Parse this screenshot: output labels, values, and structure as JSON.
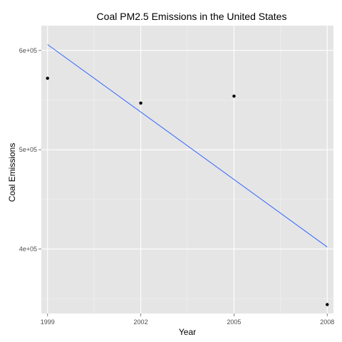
{
  "colors": {
    "panel": "#e5e5e5",
    "grid_major": "#ffffff",
    "grid_minor": "#f2f2f2",
    "fit_line": "#3366ff",
    "points": "#000000",
    "tick_text": "#4d4d4d"
  },
  "chart_data": {
    "type": "scatter",
    "title": "Coal PM2.5 Emissions in the United States",
    "xlabel": "Year",
    "ylabel": "Coal Emissions",
    "xlim": [
      1998.8,
      2008.2
    ],
    "ylim": [
      335000,
      625000
    ],
    "grid": true,
    "x_ticks": [
      1999,
      2002,
      2005,
      2008
    ],
    "x_tick_labels": [
      "1999",
      "2002",
      "2005",
      "2008"
    ],
    "y_ticks": [
      400000,
      500000,
      600000
    ],
    "y_tick_labels": [
      "4e+05",
      "5e+05",
      "6e+05"
    ],
    "series": [
      {
        "type": "scatter",
        "x": [
          1999,
          2002,
          2005,
          2008
        ],
        "y": [
          572000,
          547000,
          554000,
          344000
        ]
      },
      {
        "type": "line",
        "x": [
          1999,
          2008
        ],
        "y": [
          606000,
          402000
        ]
      }
    ]
  }
}
